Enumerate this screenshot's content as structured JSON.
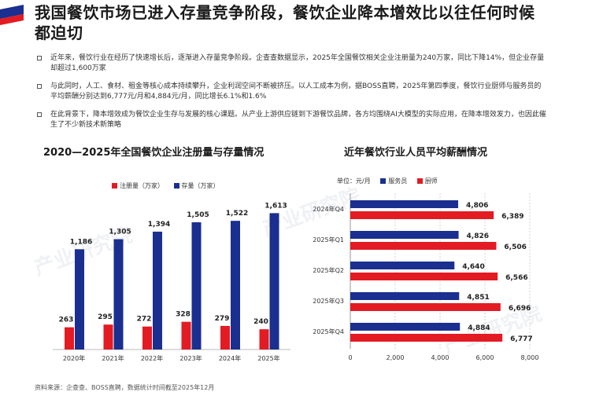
{
  "title": "我国餐饮市场已进入存量竞争阶段，餐饮企业降本增效比以往任何时候都迫切",
  "bullets": [
    "近年来，餐饮行业在经历了快速增长后，逐渐进入存量竞争阶段。企查查数据显示，2025年全国餐饮相关企业注册量为240万家，同比下降14%，但企业存量却超过1,600万家",
    "与此同时，人工、食材、租金等核心成本持续攀升，企业利润空间不断被挤压。以人工成本为例，据BOSS直聘，2025年第四季度，餐饮行业厨师与服务员的平均薪酬分别达到6,777元/月和4,884元/月，同比增长6.1%和1.6%",
    "在此背景下，降本增效成为餐饮企业生存与发展的核心课题。从产业上游供应链到下游餐饮品牌，各方均围绕AI大模型的实际应用，在降本增效发力，也因此催生了不少新技术新策略"
  ],
  "colors": {
    "red": "#e31b23",
    "blue": "#1a2f8f"
  },
  "watermark": "产业研究院",
  "source": "资料来源：企查查、BOSS直聘，数据统计时间截至2025年12月",
  "chart_data": [
    {
      "type": "bar",
      "title": "2020—2025年全国餐饮企业注册量与存量情况",
      "categories": [
        "2020年",
        "2021年",
        "2022年",
        "2023年",
        "2024年",
        "2025年"
      ],
      "series": [
        {
          "name": "注册量（万家）",
          "color": "#e31b23",
          "values": [
            263,
            295,
            272,
            328,
            279,
            240
          ]
        },
        {
          "name": "存量（万家）",
          "color": "#1a2f8f",
          "values": [
            1186,
            1305,
            1394,
            1505,
            1522,
            1613
          ]
        }
      ],
      "value_labels": {
        "注册量（万家）": [
          "263",
          "295",
          "272",
          "328",
          "279",
          "240"
        ],
        "存量（万家）": [
          "1,186",
          "1,305",
          "1,394",
          "1,505",
          "1,522",
          "1,613"
        ]
      },
      "ylim": [
        0,
        1700
      ],
      "legend": "top-left",
      "grid": false
    },
    {
      "type": "bar",
      "orientation": "horizontal",
      "title": "近年餐饮行业人员平均薪酬情况",
      "unit_label": "单位：元/月",
      "categories": [
        "2024年Q4",
        "2025年Q1",
        "2025年Q2",
        "2025年Q3",
        "2025年Q4"
      ],
      "series": [
        {
          "name": "服务员",
          "color": "#1a2f8f",
          "values": [
            4806,
            4826,
            4640,
            4851,
            4884
          ]
        },
        {
          "name": "厨师",
          "color": "#e31b23",
          "values": [
            6389,
            6506,
            6566,
            6696,
            6777
          ]
        }
      ],
      "value_labels": {
        "服务员": [
          "4,806",
          "4,826",
          "4,640",
          "4,851",
          "4,884"
        ],
        "厨师": [
          "6,389",
          "6,506",
          "6,566",
          "6,696",
          "6,777"
        ]
      },
      "xlim": [
        0,
        8000
      ],
      "x_ticks": [
        0,
        2000,
        4000,
        6000,
        8000
      ],
      "x_tick_labels": [
        "0",
        "2,000",
        "4,000",
        "6,000",
        "8,000"
      ],
      "grid": true,
      "legend": "top"
    }
  ]
}
